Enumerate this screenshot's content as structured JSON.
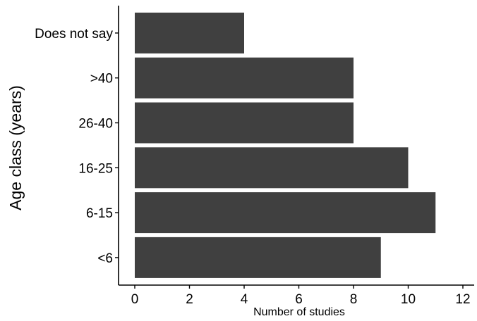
{
  "chart_data": {
    "type": "bar",
    "orientation": "horizontal",
    "categories": [
      "<6",
      "6-15",
      "16-25",
      "26-40",
      ">40",
      "Does not say"
    ],
    "values": [
      9,
      11,
      10,
      8,
      8,
      4
    ],
    "xlabel": "Number of studies",
    "ylabel": "Age class (years)",
    "xlim": [
      0,
      12
    ],
    "xticks": [
      0,
      2,
      4,
      6,
      8,
      10,
      12
    ],
    "grid": false,
    "bar_color": "#404040"
  }
}
